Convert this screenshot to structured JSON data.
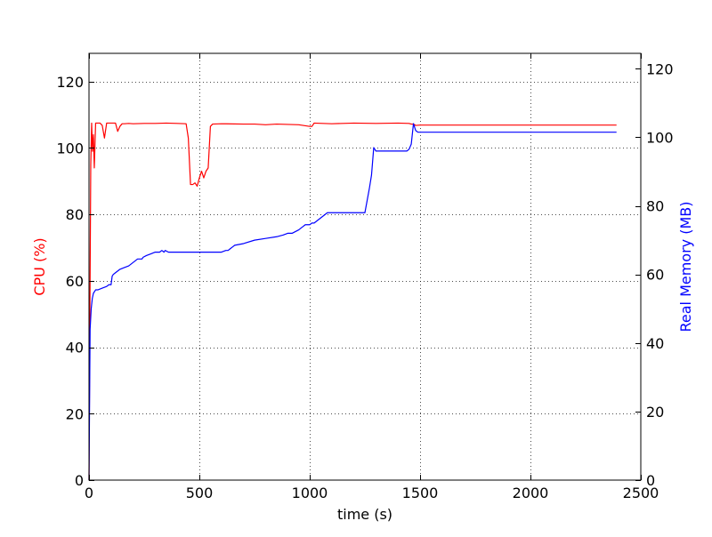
{
  "chart_data": {
    "type": "line",
    "title": "",
    "xlabel": "time (s)",
    "ylabel_left": "CPU (%)",
    "ylabel_right": "Real Memory (MB)",
    "xlim": [
      0,
      2500
    ],
    "ylim_left": [
      0,
      128.5
    ],
    "ylim_right": [
      0,
      124.5
    ],
    "xticks": [
      0,
      500,
      1000,
      1500,
      2000,
      2500
    ],
    "yticks_left": [
      0,
      20,
      40,
      60,
      80,
      100,
      120
    ],
    "yticks_right": [
      0,
      20,
      40,
      60,
      80,
      100,
      120
    ],
    "grid": true,
    "series": [
      {
        "axis": "left",
        "color": "#ff0000",
        "x": [
          0,
          4,
          8,
          12,
          16,
          20,
          24,
          30,
          40,
          50,
          60,
          70,
          80,
          90,
          100,
          110,
          120,
          130,
          140,
          150,
          160,
          180,
          200,
          250,
          300,
          350,
          400,
          440,
          450,
          460,
          470,
          480,
          490,
          500,
          510,
          520,
          530,
          540,
          550,
          560,
          600,
          700,
          750,
          800,
          850,
          900,
          950,
          1000,
          1010,
          1020,
          1100,
          1200,
          1300,
          1400,
          1450,
          1460,
          1470,
          1480,
          1500,
          1600,
          1700,
          1800,
          1900,
          2000,
          2100,
          2200,
          2300,
          2390
        ],
        "values": [
          0,
          50,
          95,
          107.5,
          99,
          104,
          94,
          107.5,
          107.5,
          107.5,
          106.8,
          103,
          107.5,
          107.5,
          107.5,
          107.5,
          107.5,
          105,
          106.5,
          107.3,
          107.3,
          107.4,
          107.3,
          107.4,
          107.4,
          107.5,
          107.4,
          107.3,
          103,
          89,
          89,
          89.5,
          88.5,
          91,
          93,
          91,
          93,
          94,
          106.5,
          107.2,
          107.3,
          107.2,
          107.2,
          107,
          107.2,
          107.1,
          107,
          106.5,
          106.5,
          107.5,
          107.3,
          107.5,
          107.4,
          107.5,
          107.4,
          107.2,
          107.2,
          106.8,
          106.9,
          106.9,
          106.9,
          106.9,
          106.9,
          106.9,
          106.9,
          106.9,
          106.9,
          106.9
        ]
      },
      {
        "axis": "right",
        "color": "#0000ff",
        "x": [
          0,
          5,
          10,
          15,
          20,
          30,
          40,
          60,
          80,
          90,
          100,
          105,
          110,
          120,
          140,
          160,
          180,
          200,
          220,
          240,
          245,
          260,
          280,
          300,
          320,
          330,
          340,
          345,
          360,
          400,
          450,
          500,
          550,
          600,
          620,
          630,
          640,
          650,
          660,
          700,
          750,
          800,
          850,
          880,
          900,
          920,
          950,
          970,
          980,
          1000,
          1010,
          1020,
          1040,
          1060,
          1080,
          1100,
          1150,
          1200,
          1230,
          1250,
          1270,
          1280,
          1290,
          1300,
          1350,
          1400,
          1440,
          1450,
          1460,
          1470,
          1480,
          1490,
          1500,
          1600,
          1800,
          2000,
          2200,
          2390
        ],
        "values": [
          0,
          44,
          50,
          53,
          54.5,
          55.5,
          55.5,
          56,
          56.5,
          57,
          57,
          59.5,
          60,
          60.5,
          61.5,
          62,
          62.5,
          63.5,
          64.5,
          64.5,
          65,
          65.5,
          66,
          66.5,
          66.5,
          67,
          66.5,
          67,
          66.5,
          66.5,
          66.5,
          66.5,
          66.5,
          66.5,
          67,
          67,
          67.5,
          68,
          68.5,
          69,
          70,
          70.5,
          71,
          71.5,
          72,
          72,
          73,
          74,
          74.5,
          74.5,
          75,
          75,
          76,
          77,
          78,
          78,
          78,
          78,
          78,
          78,
          85,
          89,
          97,
          96,
          96,
          96,
          96,
          96.5,
          98,
          104,
          102,
          101.5,
          101.5,
          101.5,
          101.5,
          101.5,
          101.5,
          101.5
        ]
      }
    ]
  }
}
